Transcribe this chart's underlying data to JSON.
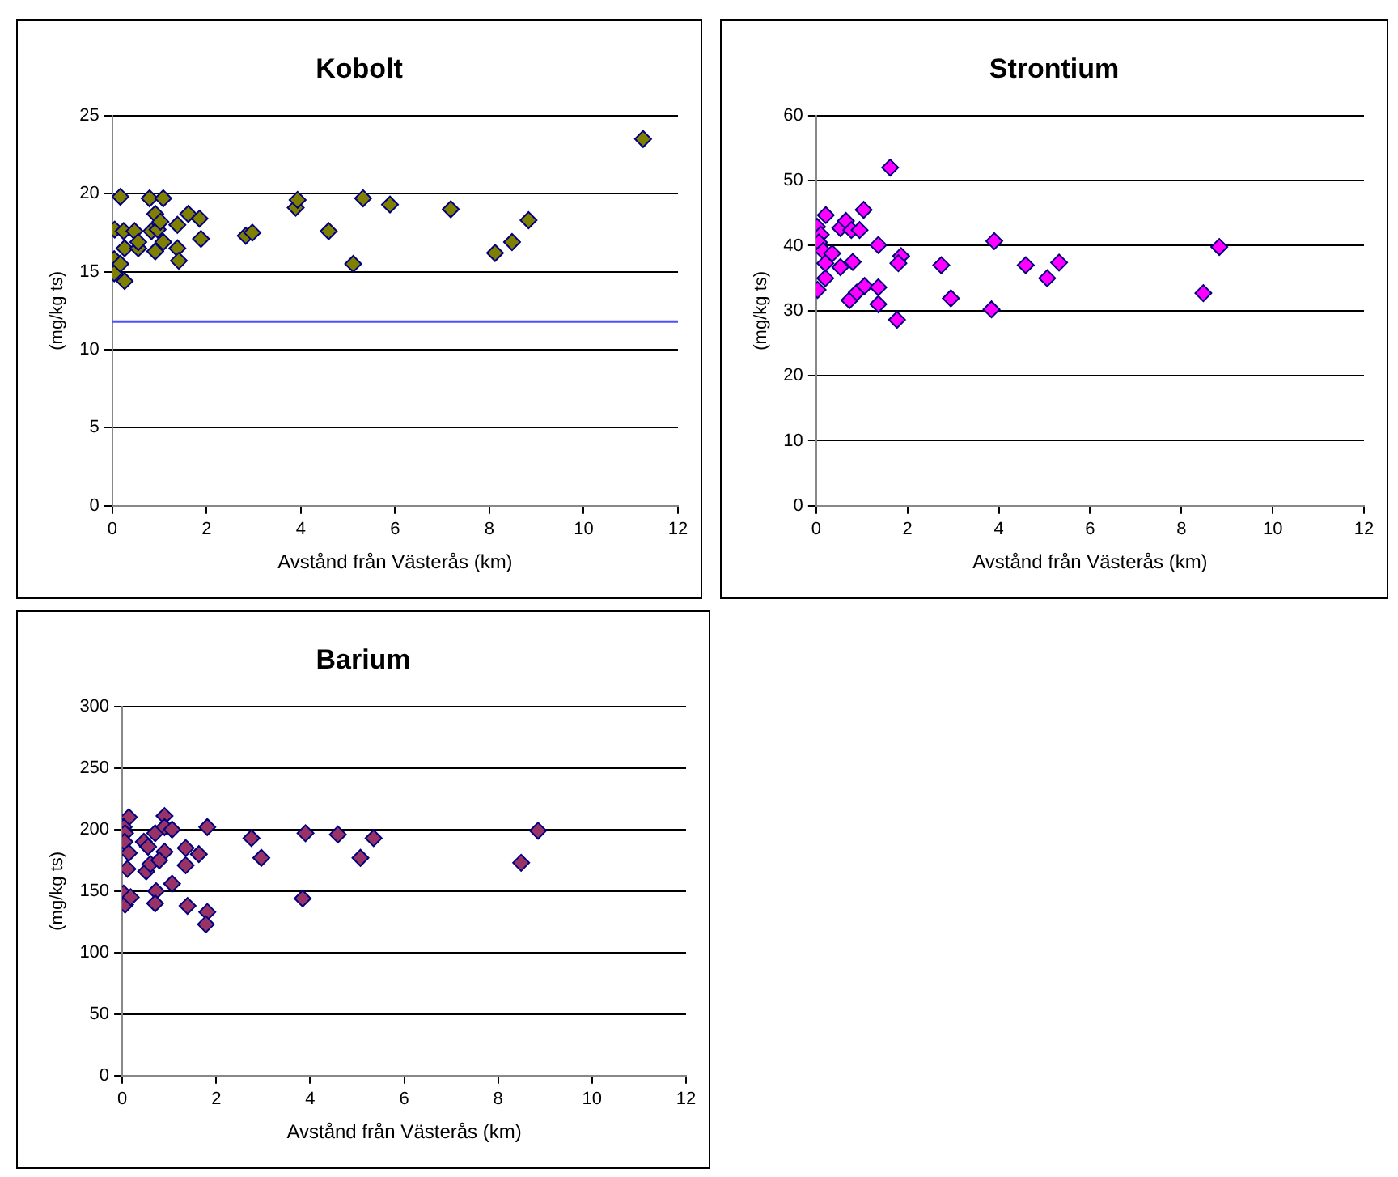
{
  "chart_data": [
    {
      "type": "scatter",
      "title": "Kobolt",
      "xlabel": "Avstånd från Västerås (km)",
      "ylabel": "(mg/kg ts)",
      "color": "#808000",
      "marker": "diamond",
      "grid": "y",
      "xlim": [
        0,
        12
      ],
      "xticks": [
        0,
        2,
        4,
        6,
        8,
        10,
        12
      ],
      "ylim": [
        0,
        25
      ],
      "yticks": [
        0,
        5,
        10,
        15,
        20,
        25
      ],
      "x": [
        0.17,
        0.05,
        0.04,
        0.04,
        0.26,
        0.17,
        0.26,
        0.24,
        0.47,
        0.55,
        0.55,
        0.79,
        0.83,
        0.91,
        0.96,
        0.91,
        1.08,
        1.02,
        1.08,
        1.38,
        1.38,
        1.41,
        1.61,
        1.85,
        1.88,
        2.83,
        2.97,
        3.89,
        3.93,
        4.59,
        5.11,
        5.32,
        5.89,
        7.18,
        8.12,
        8.48,
        8.83,
        11.26
      ],
      "values": [
        19.8,
        17.7,
        15.8,
        14.9,
        14.4,
        15.5,
        16.5,
        17.6,
        17.6,
        16.5,
        16.9,
        19.7,
        17.6,
        18.7,
        17.7,
        16.3,
        19.7,
        18.2,
        16.9,
        18.0,
        16.5,
        15.7,
        18.7,
        18.4,
        17.1,
        17.3,
        17.5,
        19.1,
        19.6,
        17.6,
        15.5,
        19.7,
        19.3,
        19.0,
        16.2,
        16.9,
        18.3,
        23.5
      ],
      "ref_lines": [
        {
          "axis": "y",
          "value": 11.8,
          "color": "#4f4fff"
        }
      ]
    },
    {
      "type": "scatter",
      "title": "Strontium",
      "xlabel": "Avstånd från Västerås (km)",
      "ylabel": "(mg/kg ts)",
      "color": "#ff00ff",
      "marker": "diamond",
      "grid": "y",
      "xlim": [
        0,
        12
      ],
      "xticks": [
        0,
        2,
        4,
        6,
        8,
        10,
        12
      ],
      "ylim": [
        0,
        60
      ],
      "yticks": [
        0,
        10,
        20,
        30,
        40,
        50,
        60
      ],
      "x": [
        1.62,
        1.04,
        0.21,
        0.02,
        0.1,
        0.06,
        0.15,
        0.03,
        0.2,
        0.2,
        0.35,
        0.53,
        0.53,
        0.65,
        0.77,
        0.95,
        0.8,
        0.73,
        0.89,
        1.06,
        1.36,
        1.36,
        1.36,
        1.86,
        1.8,
        1.77,
        2.74,
        2.95,
        3.9,
        3.84,
        4.59,
        5.06,
        5.32,
        8.83,
        8.48
      ],
      "values": [
        52,
        45.5,
        44.7,
        42.9,
        41.7,
        40.5,
        39.2,
        33.2,
        35,
        37.3,
        38.8,
        42.7,
        36.7,
        43.8,
        42.4,
        42.4,
        37.5,
        31.6,
        32.8,
        33.8,
        40.1,
        33.6,
        31,
        38.4,
        37.3,
        28.6,
        37,
        31.9,
        40.7,
        30.2,
        37,
        35,
        37.4,
        39.8,
        32.7
      ]
    },
    {
      "type": "scatter",
      "title": "Barium",
      "xlabel": "Avstånd från Västerås (km)",
      "ylabel": "(mg/kg ts)",
      "color": "#993366",
      "marker": "diamond",
      "grid": "y",
      "xlim": [
        0,
        12
      ],
      "xticks": [
        0,
        2,
        4,
        6,
        8,
        10,
        12
      ],
      "ylim": [
        0,
        300
      ],
      "yticks": [
        0,
        50,
        100,
        150,
        200,
        250,
        300
      ],
      "x": [
        0.14,
        0.03,
        0.06,
        0.05,
        0.14,
        0.11,
        0.03,
        0.06,
        0.18,
        0.46,
        0.51,
        0.55,
        0.7,
        0.6,
        0.9,
        0.9,
        1.06,
        0.9,
        0.79,
        0.72,
        0.7,
        1.06,
        1.35,
        1.63,
        1.35,
        1.39,
        1.81,
        1.81,
        1.78,
        2.75,
        2.96,
        3.84,
        3.9,
        4.59,
        5.07,
        5.35,
        8.85,
        8.49
      ],
      "values": [
        210,
        202,
        197,
        190,
        181,
        168,
        148,
        139,
        145,
        190,
        166,
        186,
        197,
        172,
        211,
        202,
        200,
        182,
        175,
        150,
        140,
        156,
        185,
        180,
        171,
        138,
        202,
        133,
        123,
        193,
        177,
        144,
        197,
        196,
        177,
        193,
        199,
        173
      ]
    }
  ]
}
